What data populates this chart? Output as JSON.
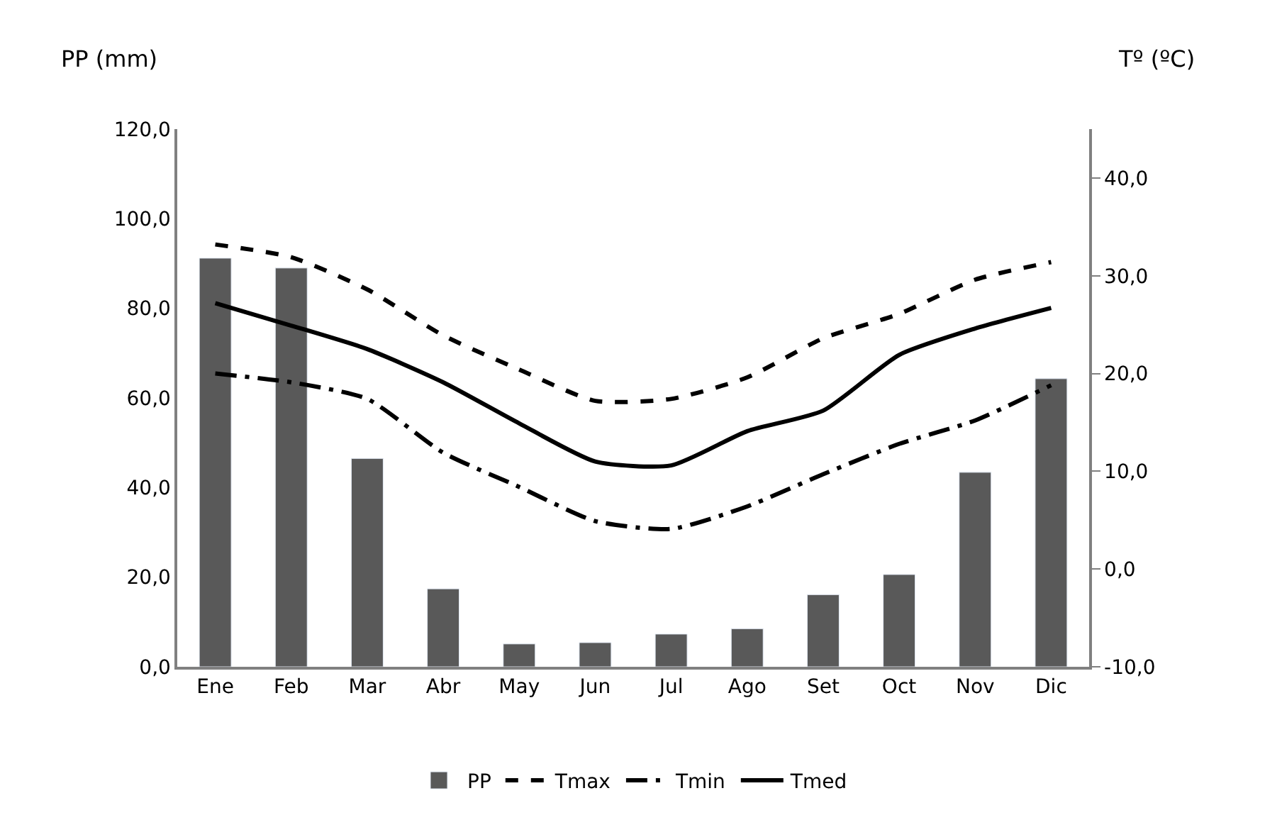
{
  "chart_data": {
    "type": "bar",
    "ylabel": "PP (mm)",
    "y2label": "Tº (ºC)",
    "categories": [
      "Ene",
      "Feb",
      "Mar",
      "Abr",
      "May",
      "Jun",
      "Jul",
      "Ago",
      "Set",
      "Oct",
      "Nov",
      "Dic"
    ],
    "series": [
      {
        "name": "PP",
        "color": "#595959",
        "values": [
          91.2,
          89.0,
          46.5,
          17.4,
          5.1,
          5.4,
          7.3,
          8.5,
          16.1,
          20.6,
          43.4,
          64.3
        ]
      },
      {
        "name": "Tmax",
        "type": "line",
        "axis": "y2",
        "color": "#000000",
        "line_style": "dashed",
        "values": [
          33.2,
          31.9,
          28.6,
          23.9,
          20.4,
          17.2,
          17.4,
          19.6,
          23.6,
          26.1,
          29.6,
          31.4
        ]
      },
      {
        "name": "Tmin",
        "type": "line",
        "axis": "y2",
        "color": "#000000",
        "line_style": "longdashdot",
        "values": [
          20.0,
          19.1,
          17.4,
          11.9,
          8.4,
          4.9,
          4.1,
          6.4,
          9.7,
          12.8,
          15.2,
          18.8
        ]
      },
      {
        "name": "Tmed",
        "type": "line",
        "axis": "y2",
        "color": "#000000",
        "line_style": "solid",
        "values": [
          27.2,
          24.9,
          22.5,
          19.1,
          14.9,
          11.0,
          10.6,
          14.1,
          16.2,
          21.9,
          24.6,
          26.7
        ]
      }
    ],
    "ylim": [
      0,
      120
    ],
    "yticks": [
      {
        "value": 0,
        "label": "0,0"
      },
      {
        "value": 20,
        "label": "20,0"
      },
      {
        "value": 40,
        "label": "40,0"
      },
      {
        "value": 60,
        "label": "60,0"
      },
      {
        "value": 80,
        "label": "80,0"
      },
      {
        "value": 100,
        "label": "100,0"
      },
      {
        "value": 120,
        "label": "120,0"
      }
    ],
    "y2lim": [
      -10,
      45
    ],
    "y2ticks": [
      {
        "value": -10,
        "label": "-10,0"
      },
      {
        "value": 0,
        "label": "0,0"
      },
      {
        "value": 10,
        "label": "10,0"
      },
      {
        "value": 20,
        "label": "20,0"
      },
      {
        "value": 30,
        "label": "30,0"
      },
      {
        "value": 40,
        "label": "40,0"
      }
    ],
    "legend": "bottom",
    "marker": "none"
  }
}
